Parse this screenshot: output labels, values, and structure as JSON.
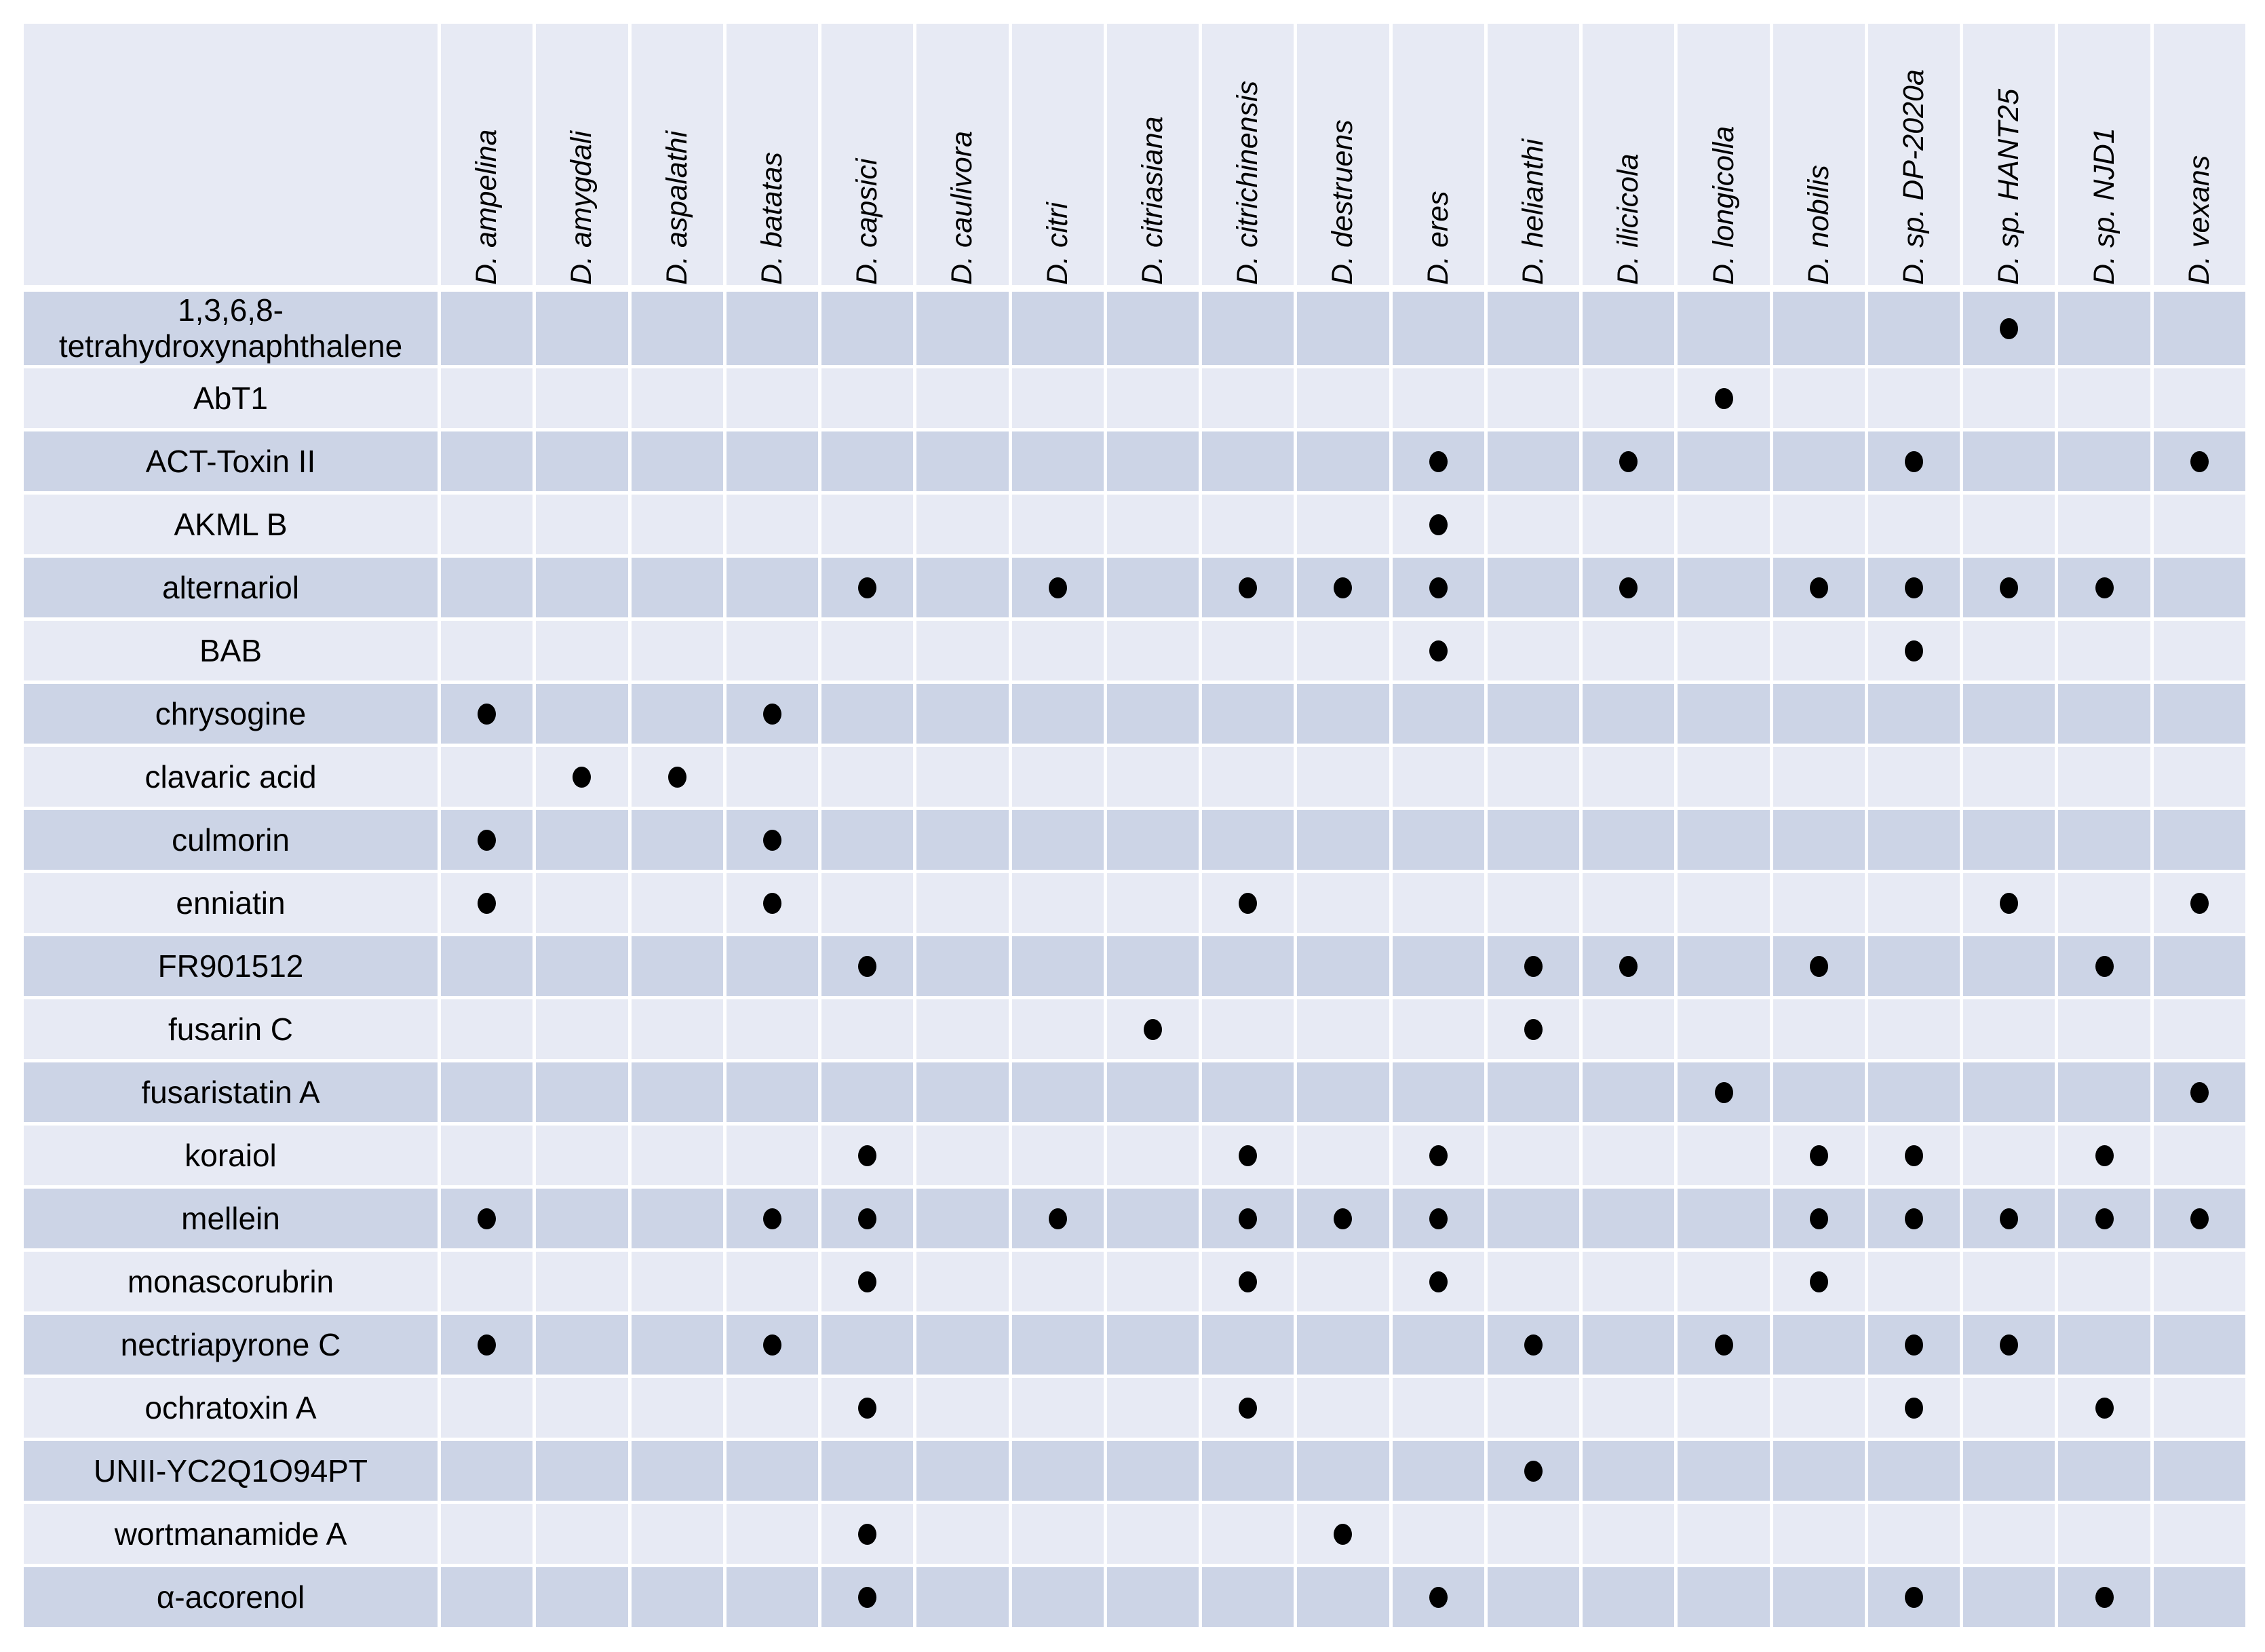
{
  "chart_data": {
    "type": "table",
    "description": "Presence-absence dot matrix of secondary metabolites (rows) detected across Diaporthe species (columns). A filled dot marks presence.",
    "columns": [
      "D. ampelina",
      "D. amygdali",
      "D. aspalathi",
      "D. batatas",
      "D. capsici",
      "D. caulivora",
      "D. citri",
      "D. citriasiana",
      "D. citrichinensis",
      "D. destruens",
      "D. eres",
      "D. helianthi",
      "D. ilicicola",
      "D. longicolla",
      "D. nobilis",
      "D. sp. DP-2020a",
      "D. sp. HANT25",
      "D. sp. NJD1",
      "D. vexans"
    ],
    "rows": [
      {
        "label": "1,3,6,8-tetrahydroxynaphthalene",
        "dots": [
          16
        ]
      },
      {
        "label": "AbT1",
        "dots": [
          13
        ]
      },
      {
        "label": "ACT-Toxin II",
        "dots": [
          10,
          12,
          15,
          18
        ]
      },
      {
        "label": "AKML B",
        "dots": [
          10
        ]
      },
      {
        "label": "alternariol",
        "dots": [
          4,
          6,
          8,
          9,
          10,
          12,
          14,
          15,
          16,
          17
        ]
      },
      {
        "label": "BAB",
        "dots": [
          10,
          15
        ]
      },
      {
        "label": "chrysogine",
        "dots": [
          0,
          3
        ]
      },
      {
        "label": "clavaric acid",
        "dots": [
          1,
          2
        ]
      },
      {
        "label": "culmorin",
        "dots": [
          0,
          3
        ]
      },
      {
        "label": "enniatin",
        "dots": [
          0,
          3,
          8,
          16,
          18
        ]
      },
      {
        "label": "FR901512",
        "dots": [
          4,
          11,
          12,
          14,
          17
        ]
      },
      {
        "label": "fusarin C",
        "dots": [
          7,
          11
        ]
      },
      {
        "label": "fusaristatin A",
        "dots": [
          13,
          18
        ]
      },
      {
        "label": "koraiol",
        "dots": [
          4,
          8,
          10,
          14,
          15,
          17
        ]
      },
      {
        "label": "mellein",
        "dots": [
          0,
          3,
          4,
          6,
          8,
          9,
          10,
          14,
          15,
          16,
          17,
          18
        ]
      },
      {
        "label": "monascorubrin",
        "dots": [
          4,
          8,
          10,
          14
        ]
      },
      {
        "label": "nectriapyrone C",
        "dots": [
          0,
          3,
          11,
          13,
          15,
          16
        ]
      },
      {
        "label": "ochratoxin A",
        "dots": [
          4,
          8,
          15,
          17
        ]
      },
      {
        "label": "UNII-YC2Q1O94PT",
        "dots": [
          11
        ]
      },
      {
        "label": "wortmanamide A",
        "dots": [
          4,
          9
        ]
      },
      {
        "label": "α-acorenol",
        "dots": [
          4,
          10,
          15,
          17
        ]
      }
    ],
    "layout": {
      "legend_position": "none",
      "grid": "white gaps between cells",
      "row_striping": "alternating dark/light starting dark"
    },
    "colors": {
      "row_dark": "#ccd4e6",
      "row_light": "#e7eaf4",
      "header_bg": "#e7eaf4",
      "gap": "#ffffff",
      "dot": "#000000",
      "text": "#000000"
    }
  }
}
